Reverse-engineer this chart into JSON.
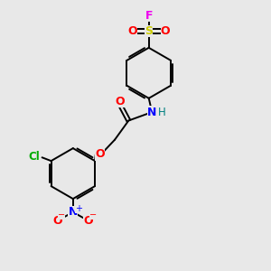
{
  "background_color": "#e8e8e8",
  "bond_color": "#000000",
  "atom_colors": {
    "F": "#ee00ee",
    "S": "#cccc00",
    "O": "#ff0000",
    "N_amide": "#0000ff",
    "H": "#008080",
    "Cl": "#00aa00",
    "N_nitro": "#0000ff",
    "C": "#000000"
  },
  "figsize": [
    3.0,
    3.0
  ],
  "dpi": 100
}
